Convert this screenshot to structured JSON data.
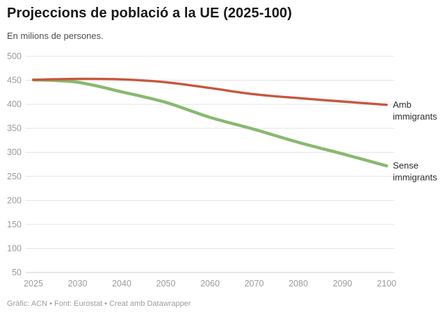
{
  "header": {
    "title": "Projeccions de població a la UE (2025-100)",
    "subtitle": "En milions de persones."
  },
  "footer": {
    "credit": "Gràfic: ACN • Font: Eurostat • Creat amb Datawrapper"
  },
  "colors": {
    "amb_immigrants_line": "#c7573e",
    "sense_immigrants_line": "#88b96f",
    "gridline": "#e4e4e4",
    "baseline": "#d2d2d2",
    "axis_text": "#9b9b9b",
    "series_label_text": "#2b2b2b"
  },
  "chart_data": {
    "type": "line",
    "title": "Projeccions de població a la UE (2025-100)",
    "subtitle": "En milions de persones.",
    "xlabel": "",
    "ylabel": "En milions de persones",
    "categories": [
      "2025",
      "2030",
      "2040",
      "2050",
      "2060",
      "2070",
      "2080",
      "2090",
      "2100"
    ],
    "series": [
      {
        "name": "Amb immigrants",
        "label_lines": [
          "Amb",
          "immigrants"
        ],
        "color": "#c7573e",
        "values": [
          451,
          453,
          452,
          446,
          434,
          421,
          413,
          406,
          399
        ]
      },
      {
        "name": "Sense immigrants",
        "label_lines": [
          "Sense",
          "immigrants"
        ],
        "color": "#88b96f",
        "values": [
          451,
          446,
          426,
          404,
          373,
          348,
          321,
          297,
          272
        ]
      }
    ],
    "y_ticks": [
      500,
      450,
      400,
      350,
      300,
      250,
      200,
      150,
      100,
      50
    ],
    "ylim": [
      50,
      500
    ],
    "grid": "horizontal-only",
    "legend_position": "labels-at-line-ends-right"
  }
}
